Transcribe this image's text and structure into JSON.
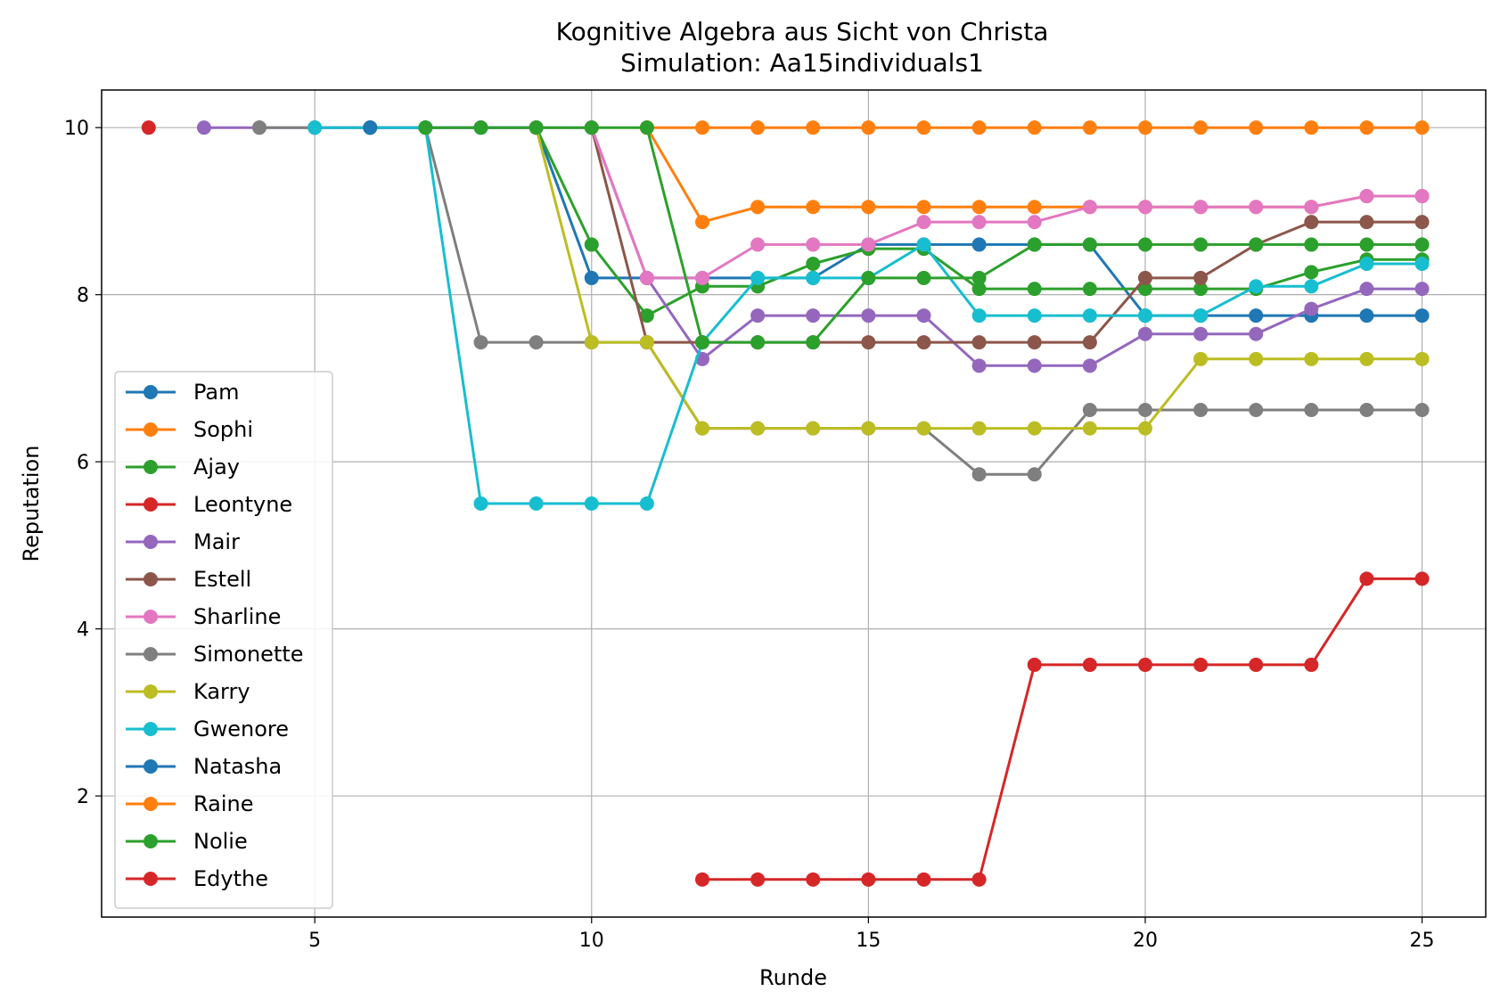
{
  "chart_data": {
    "type": "line",
    "title": "Kognitive Algebra aus Sicht von Christa",
    "subtitle": "Simulation: Aa15individuals1",
    "xlabel": "Runde",
    "ylabel": "Reputation",
    "xlim": [
      1.15,
      26.15
    ],
    "ylim": [
      0.55,
      10.45
    ],
    "xticks": [
      5,
      10,
      15,
      20,
      25
    ],
    "yticks": [
      2,
      4,
      6,
      8,
      10
    ],
    "grid": true,
    "legend_position": "lower-left",
    "series": [
      {
        "name": "Pam",
        "color": "#1f77b4",
        "x": [
          6,
          7,
          8,
          9,
          10,
          11,
          12,
          13,
          14,
          15,
          16,
          17,
          18,
          19,
          20,
          21,
          22,
          23,
          24,
          25
        ],
        "y": [
          10,
          10,
          10,
          10,
          8.2,
          8.2,
          8.2,
          8.2,
          8.2,
          8.6,
          8.6,
          8.6,
          8.6,
          8.6,
          7.75,
          7.75,
          7.75,
          7.75,
          7.75,
          7.75
        ]
      },
      {
        "name": "Sophi",
        "color": "#ff7f0e",
        "x": [
          11,
          12,
          13,
          14,
          15,
          16,
          17,
          18,
          19,
          20,
          21,
          22,
          23,
          24,
          25
        ],
        "y": [
          10,
          8.87,
          9.05,
          9.05,
          9.05,
          9.05,
          9.05,
          9.05,
          9.05,
          9.05,
          9.05,
          9.05,
          9.05,
          9.18,
          9.18
        ]
      },
      {
        "name": "Ajay",
        "color": "#2ca02c",
        "x": [
          9,
          10,
          11,
          12,
          13,
          14,
          15,
          16,
          17,
          18,
          19,
          20,
          21,
          22,
          23,
          24,
          25
        ],
        "y": [
          10,
          8.6,
          7.75,
          8.1,
          8.1,
          8.37,
          8.55,
          8.55,
          8.07,
          8.07,
          8.07,
          8.07,
          8.07,
          8.07,
          8.27,
          8.42,
          8.42
        ]
      },
      {
        "name": "Leontyne",
        "color": "#d62728",
        "x": [
          2
        ],
        "y": [
          10
        ]
      },
      {
        "name": "Mair",
        "color": "#9467bd",
        "x": [
          3,
          4,
          5,
          6,
          7,
          8,
          9,
          10,
          11,
          12,
          13,
          14,
          15,
          16,
          17,
          18,
          19,
          20,
          21,
          22,
          23,
          24,
          25
        ],
        "y": [
          10,
          10,
          10,
          10,
          10,
          10,
          10,
          10,
          8.2,
          7.23,
          7.75,
          7.75,
          7.75,
          7.75,
          7.15,
          7.15,
          7.15,
          7.53,
          7.53,
          7.53,
          7.83,
          8.07,
          8.07
        ]
      },
      {
        "name": "Estell",
        "color": "#8c564b",
        "x": [
          10,
          11,
          12,
          13,
          14,
          15,
          16,
          17,
          18,
          19,
          20,
          21,
          22,
          23,
          24,
          25
        ],
        "y": [
          10,
          7.43,
          7.43,
          7.43,
          7.43,
          7.43,
          7.43,
          7.43,
          7.43,
          7.43,
          8.2,
          8.2,
          8.6,
          8.87,
          8.87,
          8.87
        ]
      },
      {
        "name": "Sharline",
        "color": "#e377c2",
        "x": [
          10,
          11,
          12,
          13,
          14,
          15,
          16,
          17,
          18,
          19,
          20,
          21,
          22,
          23,
          24,
          25
        ],
        "y": [
          10,
          8.2,
          8.2,
          8.6,
          8.6,
          8.6,
          8.87,
          8.87,
          8.87,
          9.05,
          9.05,
          9.05,
          9.05,
          9.05,
          9.18,
          9.18
        ]
      },
      {
        "name": "Simonette",
        "color": "#7f7f7f",
        "x": [
          4,
          5,
          6,
          7,
          8,
          9,
          10,
          11,
          12,
          13,
          14,
          15,
          16,
          17,
          18,
          19,
          20,
          21,
          22,
          23,
          24,
          25
        ],
        "y": [
          10,
          10,
          10,
          10,
          7.43,
          7.43,
          7.43,
          7.43,
          6.4,
          6.4,
          6.4,
          6.4,
          6.4,
          5.85,
          5.85,
          6.62,
          6.62,
          6.62,
          6.62,
          6.62,
          6.62,
          6.62
        ]
      },
      {
        "name": "Karry",
        "color": "#bcbd22",
        "x": [
          9,
          10,
          11,
          12,
          13,
          14,
          15,
          16,
          17,
          18,
          19,
          20,
          21,
          22,
          23,
          24,
          25
        ],
        "y": [
          10,
          7.43,
          7.43,
          6.4,
          6.4,
          6.4,
          6.4,
          6.4,
          6.4,
          6.4,
          6.4,
          6.4,
          7.23,
          7.23,
          7.23,
          7.23,
          7.23
        ]
      },
      {
        "name": "Gwenore",
        "color": "#17becf",
        "x": [
          5,
          6,
          7,
          8,
          9,
          10,
          11,
          12,
          13,
          14,
          15,
          16,
          17,
          18,
          19,
          20,
          21,
          22,
          23,
          24,
          25
        ],
        "y": [
          10,
          10,
          10,
          5.5,
          5.5,
          5.5,
          5.5,
          7.43,
          8.2,
          8.2,
          8.2,
          8.6,
          7.75,
          7.75,
          7.75,
          7.75,
          7.75,
          8.1,
          8.1,
          8.37,
          8.37
        ]
      },
      {
        "name": "Natasha",
        "color": "#1f77b4",
        "x": [
          6
        ],
        "y": [
          10
        ]
      },
      {
        "name": "Raine",
        "color": "#ff7f0e",
        "x": [
          11,
          12,
          13,
          14,
          15,
          16,
          17,
          18,
          19,
          20,
          21,
          22,
          23,
          24,
          25
        ],
        "y": [
          10,
          10,
          10,
          10,
          10,
          10,
          10,
          10,
          10,
          10,
          10,
          10,
          10,
          10,
          10
        ]
      },
      {
        "name": "Nolie",
        "color": "#2ca02c",
        "x": [
          7,
          8,
          9,
          10,
          11,
          12,
          13,
          14,
          15,
          16,
          17,
          18,
          19,
          20,
          21,
          22,
          23,
          24,
          25
        ],
        "y": [
          10,
          10,
          10,
          10,
          10,
          7.43,
          7.43,
          7.43,
          8.2,
          8.2,
          8.2,
          8.6,
          8.6,
          8.6,
          8.6,
          8.6,
          8.6,
          8.6,
          8.6
        ]
      },
      {
        "name": "Edythe",
        "color": "#d62728",
        "x": [
          12,
          13,
          14,
          15,
          16,
          17,
          18,
          19,
          20,
          21,
          22,
          23,
          24,
          25
        ],
        "y": [
          1,
          1,
          1,
          1,
          1,
          1,
          3.57,
          3.57,
          3.57,
          3.57,
          3.57,
          3.57,
          4.6,
          4.6
        ]
      }
    ]
  }
}
